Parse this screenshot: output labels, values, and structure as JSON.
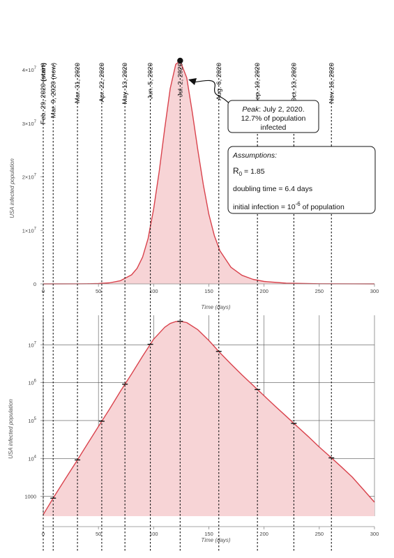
{
  "colors": {
    "curve": "#d9424c",
    "fill": "#f7d4d6",
    "marker": "#111111",
    "date_lines": "#111111",
    "grid": "#555555"
  },
  "date_markers": [
    {
      "day": 0,
      "label": "Feb. 29, 2020 ",
      "bold": "(start)"
    },
    {
      "day": 9,
      "label": "Mar. 9, 2020 (now)"
    },
    {
      "day": 31,
      "label": "Mar. 31, 2020"
    },
    {
      "day": 53,
      "label": "Apr. 22, 2020"
    },
    {
      "day": 74,
      "label": "May. 13, 2020"
    },
    {
      "day": 97,
      "label": "Jun. 5, 2020"
    },
    {
      "day": 124,
      "label": "Jul. 2, 2020"
    },
    {
      "day": 159,
      "label": "Aug. 6, 2020"
    },
    {
      "day": 194,
      "label": "Sep. 10, 2020"
    },
    {
      "day": 227,
      "label": "Oct. 13, 2020"
    },
    {
      "day": 261,
      "label": "Nov. 16, 2020"
    }
  ],
  "annotations": {
    "peak": {
      "line1_italic": "Peak",
      "line1_rest": ": July 2, 2020.",
      "line2": "12.7% of population",
      "line3": "infected"
    },
    "assumptions": {
      "title": "Assumptions:",
      "r0_symbol": "R",
      "r0_sub": "0",
      "r0_value": " = 1.85",
      "doubling": "doubling time = 6.4 days",
      "initial_pre": "initial infection = 10",
      "initial_exp": "-6",
      "initial_post": " of population"
    }
  },
  "chart_data": [
    {
      "type": "area",
      "scale": "linear",
      "xlabel": "Time (days)",
      "ylabel": "USA infected population",
      "xlim": [
        0,
        300
      ],
      "ylim": [
        0,
        40000000
      ],
      "xticks": [
        0,
        50,
        100,
        150,
        200,
        250,
        300
      ],
      "yticks": [
        {
          "value": 0,
          "label": "0"
        },
        {
          "value": 10000000,
          "mant": "1×10",
          "exp": "7"
        },
        {
          "value": 20000000,
          "mant": "2×10",
          "exp": "7"
        },
        {
          "value": 30000000,
          "mant": "3×10",
          "exp": "7"
        },
        {
          "value": 40000000,
          "mant": "4×10",
          "exp": "7"
        }
      ],
      "x": [
        0,
        30,
        40,
        50,
        60,
        70,
        80,
        85,
        90,
        95,
        100,
        105,
        110,
        115,
        120,
        124,
        130,
        135,
        140,
        145,
        150,
        155,
        160,
        170,
        180,
        190,
        200,
        220,
        250,
        300
      ],
      "y": [
        330,
        8200,
        24000,
        70000,
        200000,
        600000,
        1700000,
        2900000,
        5000000,
        8500000,
        14000000,
        21000000,
        29000000,
        36500000,
        41000000,
        41700000,
        38500000,
        32000000,
        25000000,
        18500000,
        13000000,
        9000000,
        6200000,
        3100000,
        1600000,
        850000,
        450000,
        130000,
        20000,
        700
      ],
      "peak": {
        "day": 124,
        "value": 41700000
      }
    },
    {
      "type": "area",
      "scale": "log",
      "xlabel": "Time (days)",
      "ylabel": "USA infected population",
      "xlim": [
        0,
        300
      ],
      "ylim": [
        300,
        60000000
      ],
      "xticks": [
        0,
        50,
        100,
        150,
        200,
        250,
        300
      ],
      "yticks": [
        {
          "value": 1000,
          "label": "1000"
        },
        {
          "value": 10000,
          "mant": "10",
          "exp": "4"
        },
        {
          "value": 100000,
          "mant": "10",
          "exp": "5"
        },
        {
          "value": 1000000,
          "mant": "10",
          "exp": "6"
        },
        {
          "value": 10000000,
          "mant": "10",
          "exp": "7"
        }
      ],
      "x": [
        0,
        10,
        20,
        30,
        40,
        50,
        60,
        70,
        80,
        90,
        100,
        110,
        115,
        120,
        124,
        130,
        140,
        150,
        160,
        170,
        180,
        190,
        200,
        210,
        220,
        230,
        240,
        250,
        260,
        270,
        280,
        290,
        300
      ],
      "y": [
        330,
        1000,
        2900,
        8200,
        24000,
        70000,
        200000,
        600000,
        1700000,
        5000000,
        14000000,
        29000000,
        36500000,
        41000000,
        41700000,
        38500000,
        25000000,
        13000000,
        6200000,
        3100000,
        1600000,
        850000,
        450000,
        240000,
        130000,
        70000,
        38000,
        20000,
        11000,
        6000,
        3200,
        1500,
        700
      ],
      "markers_at_dates": true
    }
  ]
}
